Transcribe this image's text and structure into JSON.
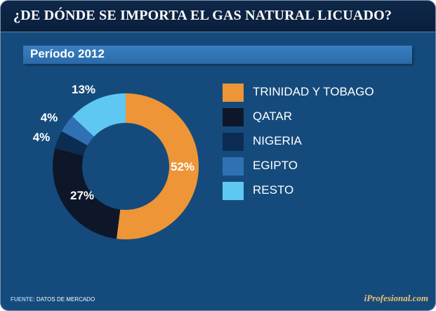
{
  "header": {
    "title": "¿DE DÓNDE SE IMPORTA EL GAS NATURAL LICUADO?"
  },
  "period": {
    "label": "Período 2012"
  },
  "chart_data": {
    "type": "pie",
    "subtype": "donut",
    "title": "¿DE DÓNDE SE IMPORTA EL GAS NATURAL LICUADO?",
    "subtitle": "Período 2012",
    "unit": "%",
    "legend_position": "right",
    "slices": [
      {
        "name": "TRINIDAD Y TOBAGO",
        "value": 52,
        "label": "52%",
        "color": "#ed9537"
      },
      {
        "name": "QATAR",
        "value": 27,
        "label": "27%",
        "color": "#0e1729"
      },
      {
        "name": "NIGERIA",
        "value": 4,
        "label": "4%",
        "color": "#0c2c52"
      },
      {
        "name": "EGIPTO",
        "value": 4,
        "label": "4%",
        "color": "#2f71b3"
      },
      {
        "name": "RESTO",
        "value": 13,
        "label": "13%",
        "color": "#5ec8f2"
      }
    ]
  },
  "footer": {
    "source_label": "FUENTE:",
    "source_text": "DATOS DE MERCADO",
    "brand": "iProfesional.com"
  }
}
